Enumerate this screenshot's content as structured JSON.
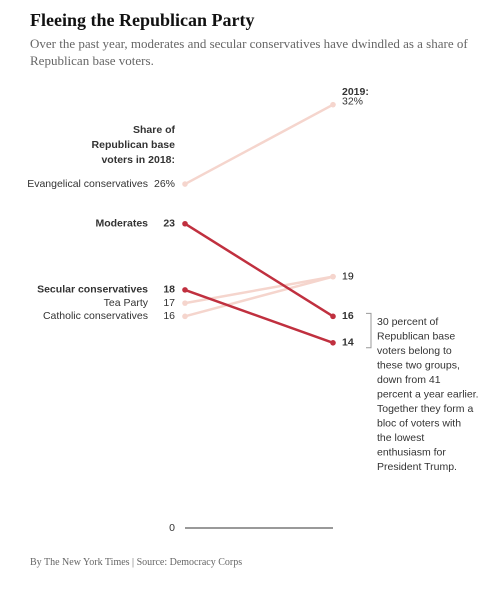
{
  "chart_data": {
    "type": "slope",
    "title": "Fleeing the Republican Party",
    "subtitle": "Over the past year, moderates and secular conservatives have dwindled as a share of Republican base voters.",
    "start_header": [
      "Share of",
      "Republican base",
      "voters in 2018:"
    ],
    "end_header": "2019:",
    "ylim": [
      0,
      35
    ],
    "yticks": [
      0
    ],
    "series": [
      {
        "name": "Evangelical conservatives",
        "values": [
          26,
          32
        ],
        "value_labels": [
          "26%",
          "32%"
        ],
        "color": "#f5d5cd",
        "highlight": false
      },
      {
        "name": "Tea Party",
        "values": [
          17,
          19
        ],
        "color": "#f5d5cd",
        "highlight": false
      },
      {
        "name": "Catholic conservatives",
        "values": [
          16,
          19
        ],
        "color": "#f5d5cd",
        "highlight": false
      },
      {
        "name": "Moderates",
        "values": [
          23,
          16
        ],
        "color": "#c0303f",
        "highlight": true
      },
      {
        "name": "Secular conservatives",
        "values": [
          18,
          14
        ],
        "color": "#c0303f",
        "highlight": true
      }
    ],
    "annotation": [
      "30 percent of",
      "Republican base",
      "voters belong to",
      "these two groups,",
      "down from 41",
      "percent a year earlier.",
      "Together they form a",
      "bloc of voters with",
      "the lowest",
      "enthusiasm for",
      "President Trump."
    ],
    "source": "By The New York Times | Source: Democracy Corps"
  }
}
